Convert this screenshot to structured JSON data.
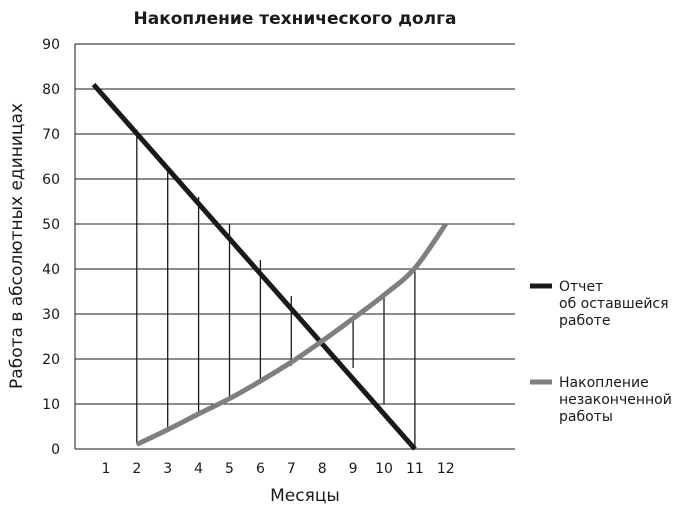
{
  "chart_data": {
    "type": "line",
    "title": "Накопление технического долга",
    "xlabel": "Месяцы",
    "ylabel": "Работа в абсолютных единицах",
    "xlim": [
      0,
      13
    ],
    "ylim": [
      0,
      90
    ],
    "x_ticks": [
      "1",
      "2",
      "3",
      "4",
      "5",
      "6",
      "7",
      "8",
      "9",
      "10",
      "11",
      "12"
    ],
    "y_ticks": [
      "0",
      "10",
      "20",
      "30",
      "40",
      "50",
      "60",
      "70",
      "80",
      "90"
    ],
    "grid": "horizontal",
    "legend_position": "right",
    "series": [
      {
        "name": "Отчет об оставшейся работе",
        "legend_lines": [
          "Отчет",
          "об оставшейся",
          "работе"
        ],
        "color": "#1a1a1a",
        "x": [
          0.6,
          11
        ],
        "y": [
          81,
          0
        ]
      },
      {
        "name": "Накопление незаконченной работы",
        "legend_lines": [
          "Накопление",
          "незаконченной",
          "работы"
        ],
        "color": "#7f7f7f",
        "x": [
          2,
          3,
          4,
          5,
          6,
          7,
          8,
          9,
          10,
          11,
          12
        ],
        "y": [
          1,
          4.3,
          7.8,
          11.2,
          15.1,
          19.3,
          24,
          29,
          34.2,
          40.2,
          50
        ]
      }
    ],
    "gap_lines": {
      "color": "#1a1a1a",
      "x": [
        2,
        3,
        4,
        5,
        6,
        7,
        9,
        10,
        11
      ],
      "y_top": [
        71,
        63,
        56,
        50,
        42,
        34,
        18,
        10,
        40
      ],
      "y_bottom": [
        1,
        4,
        7.5,
        11,
        14.5,
        18.5,
        29,
        34,
        0
      ]
    }
  }
}
